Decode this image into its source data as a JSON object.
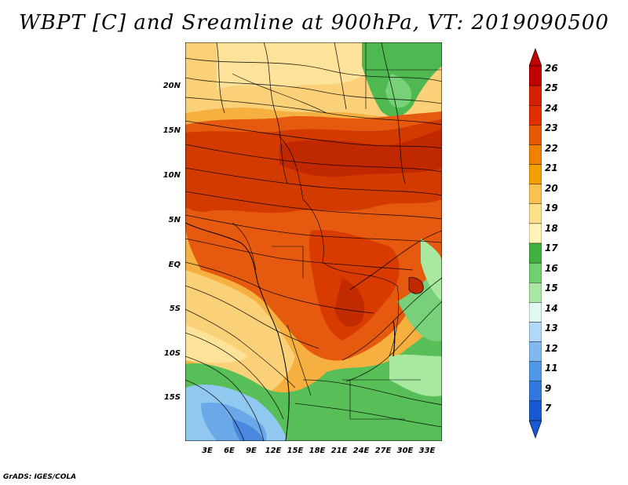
{
  "title": "WBPT [C] and Sreamline at 900hPa, VT: 2019090500",
  "credit": "GrADS: IGES/COLA",
  "axes": {
    "lat_labels": [
      "20N",
      "15N",
      "10N",
      "5N",
      "EQ",
      "5S",
      "10S",
      "15S"
    ],
    "lon_labels": [
      "3E",
      "6E",
      "9E",
      "12E",
      "15E",
      "18E",
      "21E",
      "24E",
      "27E",
      "30E",
      "33E"
    ]
  },
  "colorbar": {
    "labels": [
      "26",
      "25",
      "24",
      "23",
      "22",
      "21",
      "20",
      "19",
      "18",
      "17",
      "16",
      "15",
      "14",
      "13",
      "12",
      "11",
      "9",
      "7"
    ],
    "colors": [
      "#c00000",
      "#d42000",
      "#e03000",
      "#e85a00",
      "#f08000",
      "#f5a000",
      "#fac050",
      "#fde08a",
      "#fff3b5",
      "#40b040",
      "#70d070",
      "#a8e8a0",
      "#e0f8f0",
      "#b0d8f8",
      "#80b8f0",
      "#5098e8",
      "#3078e0",
      "#1858d0"
    ]
  },
  "chart_data": {
    "type": "heatmap",
    "title": "WBPT [C] and Sreamline at 900hPa, VT: 2019090500",
    "variable": "Wet-bulb potential temperature (C) with streamlines",
    "level": "900hPa",
    "valid_time": "2019090500",
    "lon_range_deg_east": [
      0,
      35
    ],
    "lat_range_deg": [
      -20,
      24
    ],
    "colorbar_levels": [
      7,
      9,
      11,
      12,
      13,
      14,
      15,
      16,
      17,
      18,
      19,
      20,
      21,
      22,
      23,
      24,
      25,
      26
    ]
  }
}
